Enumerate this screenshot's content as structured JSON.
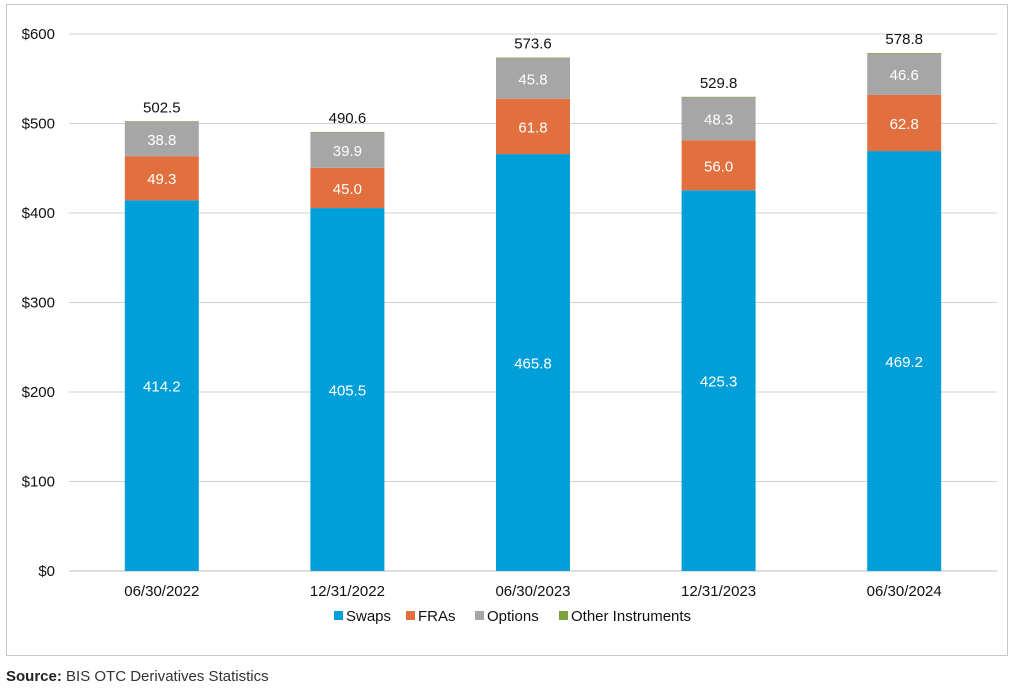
{
  "chart_data": {
    "type": "bar",
    "stacked": true,
    "categories": [
      "06/30/2022",
      "12/31/2022",
      "06/30/2023",
      "12/31/2023",
      "06/30/2024"
    ],
    "series": [
      {
        "name": "Swaps",
        "color": "#009fd9",
        "values": [
          414.2,
          405.5,
          465.8,
          425.3,
          469.2
        ]
      },
      {
        "name": "FRAs",
        "color": "#e2703f",
        "values": [
          49.3,
          45.0,
          61.8,
          56.0,
          62.8
        ]
      },
      {
        "name": "Options",
        "color": "#a6a6a6",
        "values": [
          38.8,
          39.9,
          45.8,
          48.3,
          46.6
        ]
      },
      {
        "name": "Other Instruments",
        "color": "#7ba33a",
        "values": [
          0.2,
          0.2,
          0.2,
          0.2,
          0.2
        ]
      }
    ],
    "series_labels": [
      [
        "414.2",
        "405.5",
        "465.8",
        "425.3",
        "469.2"
      ],
      [
        "49.3",
        "45.0",
        "61.8",
        "56.0",
        "62.8"
      ],
      [
        "38.8",
        "39.9",
        "45.8",
        "48.3",
        "46.6"
      ]
    ],
    "totals": [
      "502.5",
      "490.6",
      "573.6",
      "529.8",
      "578.8"
    ],
    "total_values": [
      502.5,
      490.6,
      573.6,
      529.8,
      578.8
    ],
    "y_ticks": [
      0,
      100,
      200,
      300,
      400,
      500,
      600
    ],
    "y_tick_labels": [
      "$0",
      "$100",
      "$200",
      "$300",
      "$400",
      "$500",
      "$600"
    ],
    "ylim": [
      0,
      600
    ],
    "grid": true,
    "legend_position": "bottom",
    "title": "",
    "xlabel": "",
    "ylabel": ""
  },
  "source": {
    "label": "Source:",
    "text": "BIS OTC Derivatives Statistics"
  }
}
